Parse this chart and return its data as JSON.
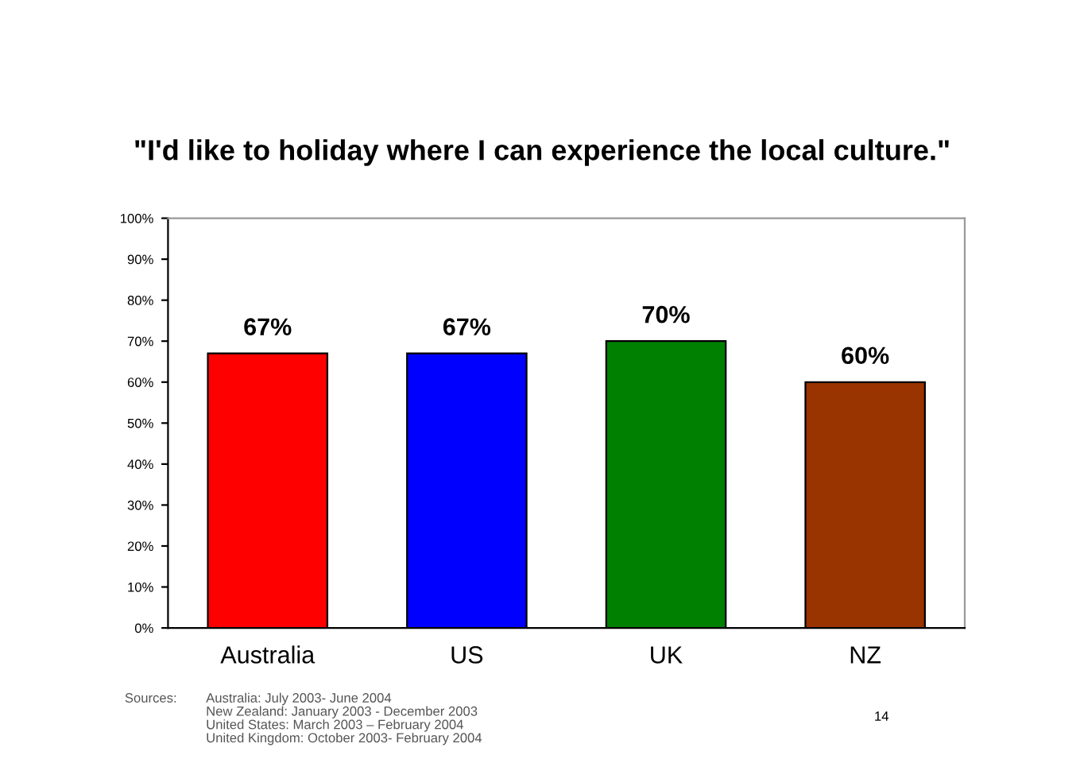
{
  "chart_data": {
    "type": "bar",
    "title": "\"I'd like to holiday where I can experience the local culture.\"",
    "categories": [
      "Australia",
      "US",
      "UK",
      "NZ"
    ],
    "values": [
      67,
      67,
      70,
      60
    ],
    "colors": [
      "#ff0000",
      "#0000ff",
      "#008000",
      "#993300"
    ],
    "value_labels": [
      "67%",
      "67%",
      "70%",
      "60%"
    ],
    "ylim": [
      0,
      100
    ],
    "yticks": [
      {
        "value": 0,
        "label": "0%"
      },
      {
        "value": 10,
        "label": "10%"
      },
      {
        "value": 20,
        "label": "20%"
      },
      {
        "value": 30,
        "label": "30%"
      },
      {
        "value": 40,
        "label": "40%"
      },
      {
        "value": 50,
        "label": "50%"
      },
      {
        "value": 60,
        "label": "60%"
      },
      {
        "value": 70,
        "label": "70%"
      },
      {
        "value": 80,
        "label": "80%"
      },
      {
        "value": 90,
        "label": "90%"
      },
      {
        "value": 100,
        "label": "100%"
      }
    ],
    "grid": false,
    "legend": false,
    "annotations": [
      "Sources:",
      "Australia: July 2003- June 2004\nNew Zealand: January 2003 - December 2003\nUnited States: March 2003 – February 2004\nUnited Kingdom: October 2003- February 2004",
      "14"
    ]
  }
}
